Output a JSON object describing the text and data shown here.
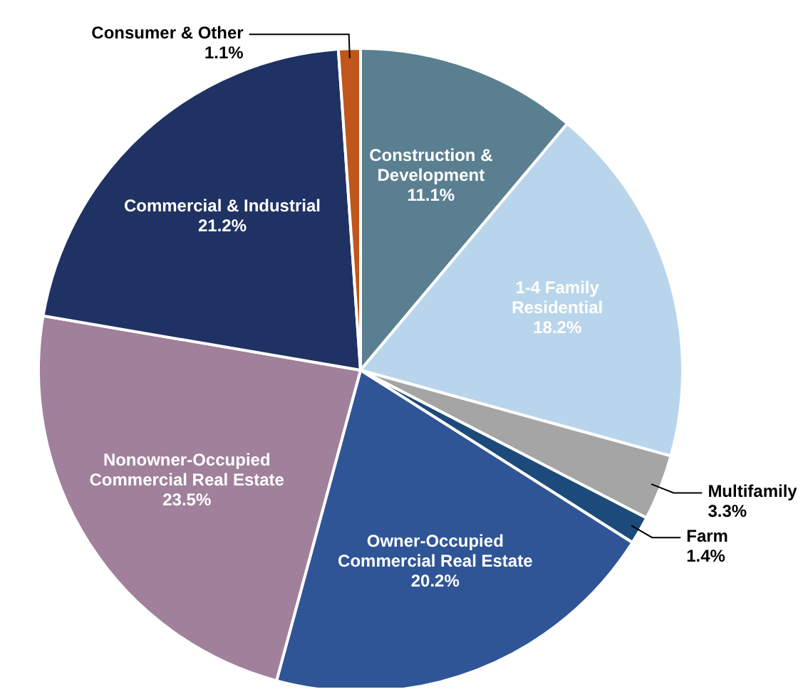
{
  "chart_data": {
    "type": "pie",
    "categories": [
      "Construction &\nDevelopment",
      "1-4 Family\nResidential",
      "Multifamily",
      "Farm",
      "Owner-Occupied\nCommercial Real Estate",
      "Nonowner-Occupied\nCommercial Real Estate",
      "Commercial & Industrial",
      "Consumer & Other"
    ],
    "values": [
      11.1,
      18.2,
      3.3,
      1.4,
      20.2,
      23.5,
      21.2,
      1.1
    ],
    "value_labels": [
      "11.1%",
      "18.2%",
      "3.3%",
      "1.4%",
      "20.2%",
      "23.5%",
      "21.2%",
      "1.1%"
    ],
    "colors": [
      "#5a7f90",
      "#b9d5ec",
      "#a5a5a5",
      "#1c4a7a",
      "#2f5597",
      "#a0809a",
      "#1f3263",
      "#c0561c"
    ],
    "legend": false
  }
}
